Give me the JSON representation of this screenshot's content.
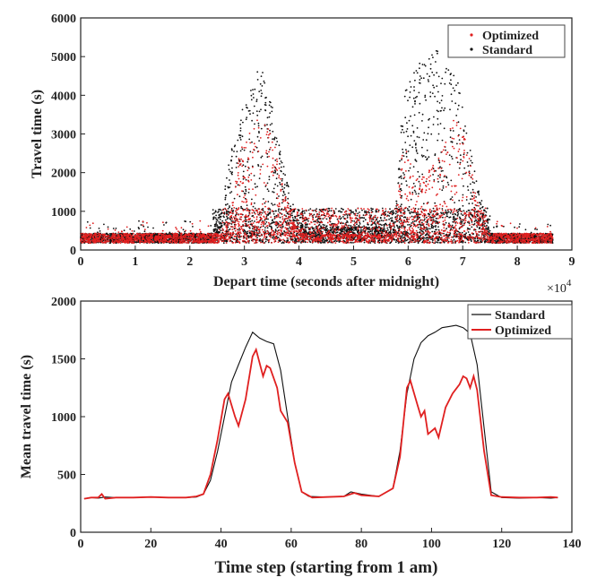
{
  "chart_data": [
    {
      "type": "scatter",
      "xlabel": "Depart time (seconds after midnight)",
      "ylabel": "Travel time (s)",
      "x_multiplier": "×10",
      "x_multiplier_exp": "4",
      "xlim": [
        0,
        9
      ],
      "ylim": [
        0,
        6000
      ],
      "xticks": [
        "0",
        "1",
        "2",
        "3",
        "4",
        "5",
        "6",
        "7",
        "8",
        "9"
      ],
      "yticks": [
        "0",
        "1000",
        "2000",
        "3000",
        "4000",
        "5000",
        "6000"
      ],
      "legend_position": "top-right",
      "series": [
        {
          "name": "Optimized",
          "color": "#e02020",
          "envelope": [
            [
              2.6,
              300
            ],
            [
              2.75,
              1000
            ],
            [
              2.9,
              2500
            ],
            [
              3.05,
              3000
            ],
            [
              3.2,
              3300
            ],
            [
              3.35,
              3900
            ],
            [
              3.5,
              3100
            ],
            [
              3.7,
              1700
            ],
            [
              3.9,
              700
            ],
            [
              4.1,
              400
            ],
            [
              5.75,
              400
            ],
            [
              5.9,
              2900
            ],
            [
              6.05,
              2200
            ],
            [
              6.2,
              1800
            ],
            [
              6.4,
              2100
            ],
            [
              6.6,
              2600
            ],
            [
              6.85,
              3500
            ],
            [
              7.05,
              2900
            ],
            [
              7.25,
              1400
            ],
            [
              7.45,
              500
            ]
          ]
        },
        {
          "name": "Standard",
          "color": "#111111",
          "envelope": [
            [
              2.4,
              400
            ],
            [
              2.6,
              1200
            ],
            [
              2.8,
              3000
            ],
            [
              3.0,
              3800
            ],
            [
              3.2,
              4400
            ],
            [
              3.3,
              4950
            ],
            [
              3.45,
              4200
            ],
            [
              3.65,
              2600
            ],
            [
              3.85,
              1400
            ],
            [
              4.05,
              600
            ],
            [
              5.75,
              600
            ],
            [
              5.9,
              3800
            ],
            [
              6.05,
              4700
            ],
            [
              6.3,
              4900
            ],
            [
              6.5,
              5200
            ],
            [
              6.7,
              4900
            ],
            [
              6.9,
              4400
            ],
            [
              7.1,
              3000
            ],
            [
              7.3,
              1500
            ],
            [
              7.5,
              600
            ]
          ]
        }
      ]
    },
    {
      "type": "line",
      "xlabel": "Time step (starting from 1 am)",
      "ylabel": "Mean travel time (s)",
      "xlim": [
        0,
        140
      ],
      "ylim": [
        0,
        2000
      ],
      "xticks": [
        "0",
        "20",
        "40",
        "60",
        "80",
        "100",
        "120",
        "140"
      ],
      "yticks": [
        "0",
        "500",
        "1000",
        "1500",
        "2000"
      ],
      "legend_position": "top-right",
      "series": [
        {
          "name": "Standard",
          "color": "#111111",
          "points": [
            [
              1,
              290
            ],
            [
              3,
              300
            ],
            [
              5,
              295
            ],
            [
              7,
              305
            ],
            [
              10,
              300
            ],
            [
              15,
              300
            ],
            [
              20,
              305
            ],
            [
              25,
              300
            ],
            [
              30,
              300
            ],
            [
              33,
              305
            ],
            [
              35,
              330
            ],
            [
              37,
              450
            ],
            [
              39,
              700
            ],
            [
              41,
              1000
            ],
            [
              43,
              1300
            ],
            [
              45,
              1450
            ],
            [
              47,
              1600
            ],
            [
              49,
              1730
            ],
            [
              51,
              1680
            ],
            [
              53,
              1650
            ],
            [
              55,
              1630
            ],
            [
              57,
              1400
            ],
            [
              59,
              1000
            ],
            [
              61,
              600
            ],
            [
              63,
              350
            ],
            [
              65,
              310
            ],
            [
              70,
              305
            ],
            [
              75,
              310
            ],
            [
              77,
              350
            ],
            [
              80,
              330
            ],
            [
              85,
              310
            ],
            [
              89,
              380
            ],
            [
              91,
              700
            ],
            [
              93,
              1200
            ],
            [
              95,
              1500
            ],
            [
              97,
              1640
            ],
            [
              99,
              1700
            ],
            [
              101,
              1730
            ],
            [
              103,
              1770
            ],
            [
              105,
              1780
            ],
            [
              107,
              1790
            ],
            [
              109,
              1770
            ],
            [
              111,
              1720
            ],
            [
              113,
              1450
            ],
            [
              115,
              900
            ],
            [
              117,
              350
            ],
            [
              120,
              300
            ],
            [
              125,
              295
            ],
            [
              130,
              300
            ],
            [
              134,
              295
            ],
            [
              136,
              300
            ]
          ]
        },
        {
          "name": "Optimized",
          "color": "#e02020",
          "points": [
            [
              1,
              290
            ],
            [
              3,
              300
            ],
            [
              5,
              300
            ],
            [
              6,
              330
            ],
            [
              7,
              290
            ],
            [
              10,
              300
            ],
            [
              15,
              300
            ],
            [
              20,
              305
            ],
            [
              25,
              300
            ],
            [
              30,
              300
            ],
            [
              33,
              310
            ],
            [
              35,
              330
            ],
            [
              37,
              500
            ],
            [
              39,
              800
            ],
            [
              41,
              1150
            ],
            [
              42,
              1200
            ],
            [
              44,
              1000
            ],
            [
              45,
              920
            ],
            [
              47,
              1150
            ],
            [
              49,
              1520
            ],
            [
              50,
              1580
            ],
            [
              52,
              1350
            ],
            [
              53,
              1440
            ],
            [
              54,
              1420
            ],
            [
              56,
              1250
            ],
            [
              57,
              1050
            ],
            [
              59,
              950
            ],
            [
              61,
              600
            ],
            [
              63,
              350
            ],
            [
              66,
              300
            ],
            [
              70,
              305
            ],
            [
              75,
              310
            ],
            [
              78,
              340
            ],
            [
              80,
              320
            ],
            [
              85,
              310
            ],
            [
              89,
              380
            ],
            [
              91,
              650
            ],
            [
              93,
              1250
            ],
            [
              94,
              1310
            ],
            [
              96,
              1100
            ],
            [
              97,
              1000
            ],
            [
              98,
              1050
            ],
            [
              99,
              850
            ],
            [
              101,
              900
            ],
            [
              102,
              820
            ],
            [
              104,
              1080
            ],
            [
              106,
              1200
            ],
            [
              108,
              1280
            ],
            [
              109,
              1350
            ],
            [
              110,
              1330
            ],
            [
              111,
              1250
            ],
            [
              112,
              1350
            ],
            [
              113,
              1230
            ],
            [
              115,
              700
            ],
            [
              117,
              320
            ],
            [
              120,
              305
            ],
            [
              125,
              300
            ],
            [
              130,
              300
            ],
            [
              134,
              305
            ],
            [
              136,
              300
            ]
          ]
        }
      ]
    }
  ]
}
